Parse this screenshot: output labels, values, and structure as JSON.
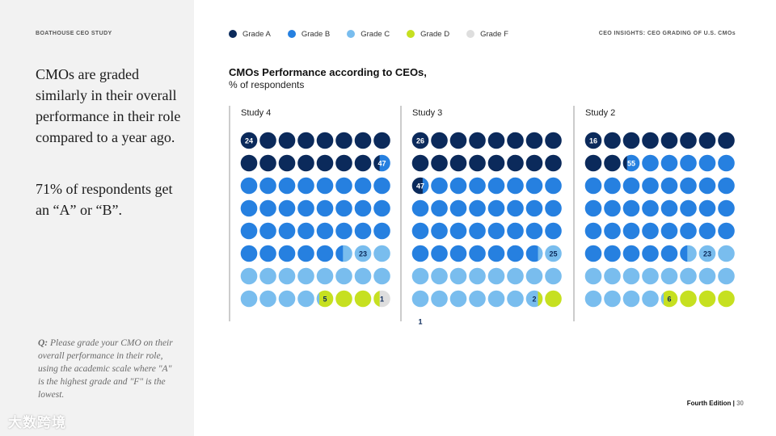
{
  "left": {
    "brand": "BOATHOUSE CEO STUDY",
    "headline": "CMOs are graded similarly in their overall performance in their role compared to a year ago.",
    "subhead": "71% of respondents get an “A” or “B”.",
    "question_label": "Q:",
    "question_text": "Please grade your CMO on their overall performance in their role, using the academic scale where \"A\" is the highest grade and \"F\" is the lowest.",
    "watermark": "大数跨境"
  },
  "header": {
    "right_title": "CEO INSIGHTS: CEO GRADING OF U.S. CMOs"
  },
  "footer": {
    "edition": "Fourth Edition |",
    "page": "30"
  },
  "colors": {
    "grade_a": "#0b2a5b",
    "grade_b": "#2680e0",
    "grade_c": "#79bdee",
    "grade_d": "#c6e020",
    "grade_f": "#dedede"
  },
  "chart_data": {
    "type": "waffle",
    "title": "CMOs Performance according to CEOs,",
    "subtitle": "% of respondents",
    "legend_position": "top",
    "legend": [
      {
        "key": "A",
        "label": "Grade A",
        "color": "#0b2a5b"
      },
      {
        "key": "B",
        "label": "Grade B",
        "color": "#2680e0"
      },
      {
        "key": "C",
        "label": "Grade C",
        "color": "#79bdee"
      },
      {
        "key": "D",
        "label": "Grade D",
        "color": "#c6e020"
      },
      {
        "key": "F",
        "label": "Grade F",
        "color": "#dedede"
      }
    ],
    "grid": {
      "rows": 8,
      "cols": 8,
      "total": 64
    },
    "panels": [
      {
        "name": "Study 4",
        "values": {
          "A": 24,
          "B": 47,
          "C": 23,
          "D": 5,
          "F": 1
        },
        "labels": {
          "A": "24",
          "B": "47",
          "C": "23",
          "D": "5",
          "F": "1"
        }
      },
      {
        "name": "Study 3",
        "values": {
          "A": 26,
          "B": 47,
          "C": 25,
          "D": 2,
          "F": 1
        },
        "labels": {
          "A": "26",
          "B": "47",
          "C": "25",
          "D": "2",
          "F": "1"
        }
      },
      {
        "name": "Study 2",
        "values": {
          "A": 16,
          "B": 55,
          "C": 23,
          "D": 6,
          "F": 0
        },
        "labels": {
          "A": "16",
          "B": "55",
          "C": "23",
          "D": "6"
        }
      }
    ]
  }
}
